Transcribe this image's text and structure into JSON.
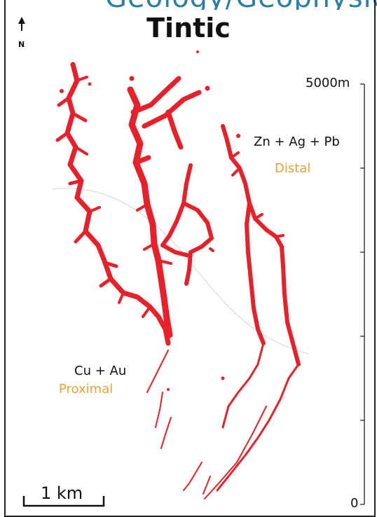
{
  "header": {
    "partial_text": "Geology/Geophysics"
  },
  "map": {
    "title": "Tintic",
    "north_label": "N",
    "distal_metals": "Zn + Ag + Pb",
    "distal_zone": "Distal",
    "proximal_metals": "Cu + Au",
    "proximal_zone": "Proximal",
    "scale_bar_label": "1 km",
    "depth_axis": {
      "top_label": "5000m",
      "bottom_label": "0"
    },
    "colors": {
      "orebody": "#e8202a",
      "zone_text": "#e8a23a",
      "header": "#2a7fa3"
    }
  }
}
